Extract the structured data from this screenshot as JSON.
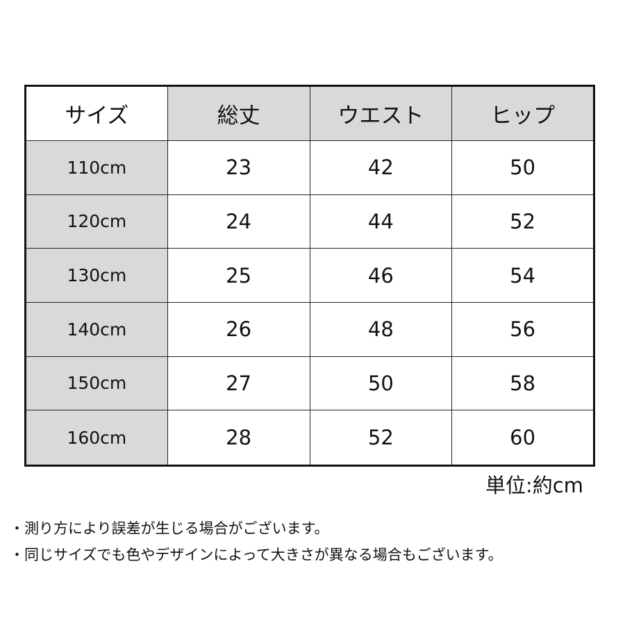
{
  "table": {
    "headers": [
      "サイズ",
      "総丈",
      "ウエスト",
      "ヒップ"
    ],
    "rows": [
      [
        "110cm",
        "23",
        "42",
        "50"
      ],
      [
        "120cm",
        "24",
        "44",
        "52"
      ],
      [
        "130cm",
        "25",
        "46",
        "54"
      ],
      [
        "140cm",
        "26",
        "48",
        "56"
      ],
      [
        "150cm",
        "27",
        "50",
        "58"
      ],
      [
        "160cm",
        "28",
        "52",
        "60"
      ]
    ]
  },
  "unit_label": "単位:約cm",
  "notes": [
    "・測り方により誤差が生じる場合がございます。",
    "・同じサイズでも色やデザインによって大きさが異なる場合もございます。"
  ],
  "colors": {
    "header_fill": "#d9d9d9",
    "border": "#111111"
  }
}
